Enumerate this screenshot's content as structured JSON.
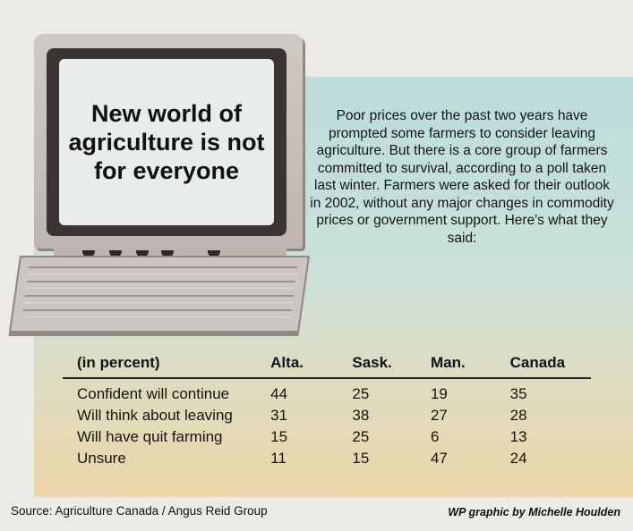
{
  "headline": "New world of agriculture is not for everyone",
  "paragraph": "Poor prices over the past two years have prompted some farmers to consider leaving agriculture. But there is a core group of farmers committed to survival, according to a poll taken last winter. Farmers were asked for their outlook in 2002, without any major changes in commodity prices or government support. Here's what they said:",
  "chart_data": {
    "type": "table",
    "unit_label": "(in percent)",
    "columns": [
      "Alta.",
      "Sask.",
      "Man.",
      "Canada"
    ],
    "rows": [
      {
        "label": "Confident will continue",
        "values": [
          44,
          25,
          19,
          35
        ]
      },
      {
        "label": "Will think about leaving",
        "values": [
          31,
          38,
          27,
          28
        ]
      },
      {
        "label": "Will have quit farming",
        "values": [
          15,
          25,
          6,
          13
        ]
      },
      {
        "label": "Unsure",
        "values": [
          11,
          15,
          47,
          24
        ]
      }
    ]
  },
  "footer": {
    "source": "Source: Agriculture Canada / Angus Reid Group",
    "credit": "WP graphic by Michelle Houlden"
  }
}
